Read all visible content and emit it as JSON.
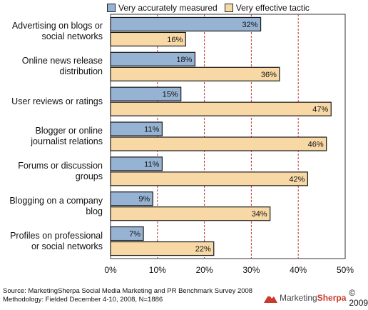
{
  "legend": {
    "measured_label": "Very accurately measured",
    "effective_label": "Very effective tactic"
  },
  "colors": {
    "measured": "#97b3d3",
    "effective": "#f8d9a6",
    "bar_stroke": "#1a1a1a",
    "gridline": "#c0392b"
  },
  "chart_data": {
    "type": "bar",
    "orientation": "horizontal",
    "categories": [
      [
        "Advertising on blogs or",
        "social networks"
      ],
      [
        "Online news release",
        "distribution"
      ],
      [
        "User reviews or ratings"
      ],
      [
        "Blogger or online",
        "journalist relations"
      ],
      [
        "Forums or discussion",
        "groups"
      ],
      [
        "Blogging on a company",
        "blog"
      ],
      [
        "Profiles on professional",
        "or social networks"
      ]
    ],
    "series": [
      {
        "name": "Very accurately measured",
        "values": [
          32,
          18,
          15,
          11,
          11,
          9,
          7
        ],
        "labels": [
          "32%",
          "18%",
          "15%",
          "11%",
          "11%",
          "9%",
          "7%"
        ]
      },
      {
        "name": "Very effective tactic",
        "values": [
          16,
          36,
          47,
          46,
          42,
          34,
          22
        ],
        "labels": [
          "16%",
          "36%",
          "47%",
          "46%",
          "42%",
          "34%",
          "22%"
        ]
      }
    ],
    "xlim": [
      0,
      50
    ],
    "xticks": [
      "0%",
      "10%",
      "20%",
      "30%",
      "40%",
      "50%"
    ],
    "grid": true,
    "legend_position": "top"
  },
  "footer": {
    "source": "Source: MarketingSherpa Social Media Marketing and PR Benchmark Survey 2008",
    "methodology": "Methodology: Fielded December 4-10, 2008, N=1886"
  },
  "brand": {
    "word1": "Marketing",
    "word2": "Sherpa",
    "copyright": "© 2009"
  }
}
